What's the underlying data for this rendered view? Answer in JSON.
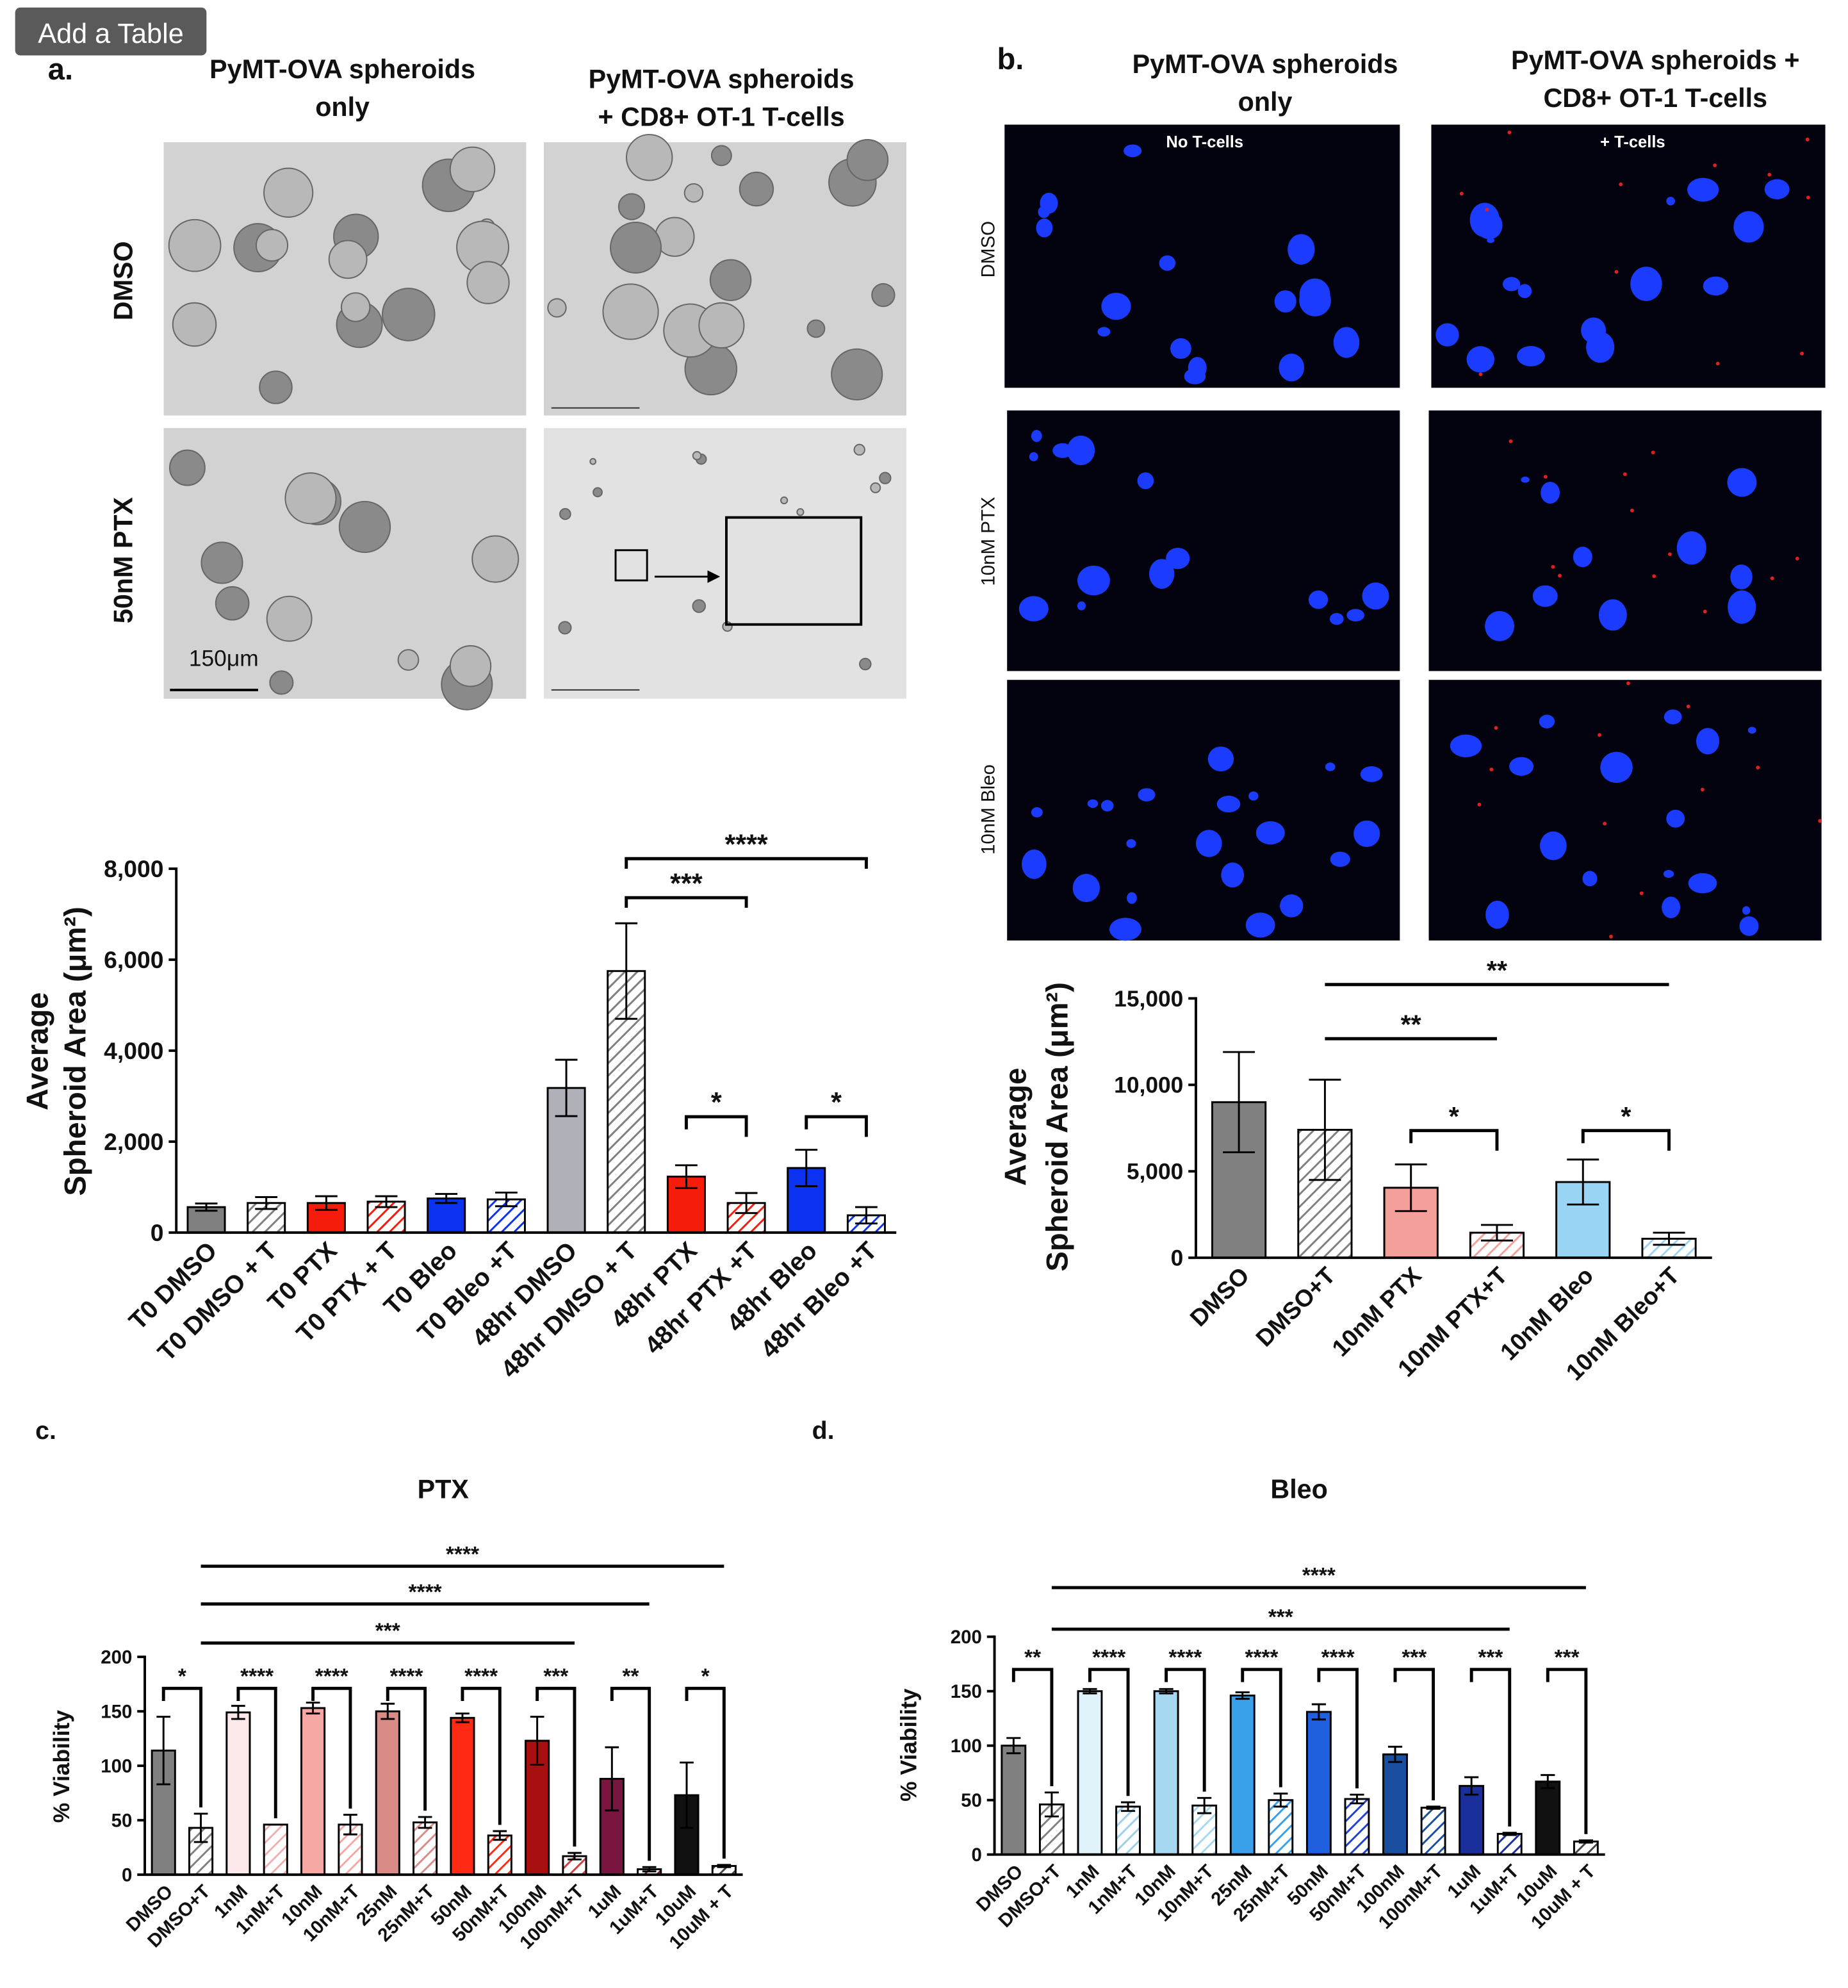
{
  "button": "Add a Table",
  "panel_a": {
    "label": "a.",
    "col_headers": [
      [
        "PyMT-OVA spheroids",
        "only"
      ],
      [
        "PyMT-OVA spheroids",
        "+ CD8+ OT-1 T-cells"
      ]
    ],
    "row_labels": [
      "DMSO",
      "50nM PTX"
    ],
    "scale_bar": "150μm"
  },
  "panel_b": {
    "label": "b.",
    "col_headers": [
      [
        "PyMT-OVA spheroids",
        "only"
      ],
      [
        "PyMT-OVA spheroids +",
        "CD8+ OT-1 T-cells"
      ]
    ],
    "image_labels": [
      "No T-cells",
      "+ T-cells"
    ],
    "row_labels": [
      "DMSO",
      "10nM PTX",
      "10nM Bleo"
    ]
  },
  "panel_c": {
    "label": "c."
  },
  "panel_d": {
    "label": "d."
  },
  "chart_data": [
    {
      "type": "bar",
      "y_label": [
        "Average",
        "Spheroid Area (μm²)"
      ],
      "categories": [
        "T0 DMSO",
        "T0 DMSO + T",
        "T0 PTX",
        "T0 PTX + T",
        "T0 Bleo",
        "T0 Bleo +T",
        "48hr DMSO",
        "48hr DMSO + T",
        "48hr PTX",
        "48hr PTX +T",
        "48hr Bleo",
        "48hr Bleo +T"
      ],
      "values": [
        560,
        650,
        650,
        680,
        750,
        730,
        3180,
        5750,
        1230,
        650,
        1420,
        380
      ],
      "errors": [
        80,
        130,
        150,
        120,
        100,
        150,
        620,
        1050,
        250,
        220,
        400,
        180
      ],
      "colors": [
        "#808080",
        "#808080",
        "#f51c0c",
        "#f51c0c",
        "#0a32f0",
        "#0a32f0",
        "#b0b0b8",
        "#808080",
        "#f51c0c",
        "#f51c0c",
        "#0a32f0",
        "#0a32f0"
      ],
      "hatched": [
        false,
        true,
        false,
        true,
        false,
        true,
        false,
        true,
        false,
        true,
        false,
        true
      ],
      "ylim": [
        0,
        8000
      ],
      "yticks": [
        0,
        {
          "value": 2000,
          "label": "2,000"
        },
        {
          "value": 4000,
          "label": "4,000"
        },
        {
          "value": 6000,
          "label": "6,000"
        },
        {
          "value": 8000,
          "label": "8,000"
        }
      ],
      "grid": false,
      "annotations": [
        {
          "text": "****",
          "between": [
            "48hr DMSO + T",
            "48hr Bleo +T"
          ]
        },
        {
          "text": "***",
          "between": [
            "48hr DMSO + T",
            "48hr PTX +T"
          ]
        },
        {
          "text": "*",
          "between": [
            "48hr PTX",
            "48hr PTX +T"
          ]
        },
        {
          "text": "*",
          "between": [
            "48hr Bleo",
            "48hr Bleo +T"
          ]
        }
      ]
    },
    {
      "type": "bar",
      "y_label": [
        "Average",
        "Spheroid Area (μm²)"
      ],
      "categories": [
        "DMSO",
        "DMSO+T",
        "10nM PTX",
        "10nM PTX+T",
        "10nM Bleo",
        "10nM Bleo+T"
      ],
      "values": [
        9000,
        7400,
        4050,
        1450,
        4380,
        1100
      ],
      "errors": [
        2900,
        2900,
        1350,
        450,
        1300,
        350
      ],
      "colors": [
        "#808080",
        "#808080",
        "#f4a09a",
        "#f4a09a",
        "#99d4f5",
        "#99d4f5"
      ],
      "hatched": [
        false,
        true,
        false,
        true,
        false,
        true
      ],
      "ylim": [
        0,
        15000
      ],
      "yticks": [
        0,
        {
          "value": 5000,
          "label": "5,000"
        },
        {
          "value": 10000,
          "label": "10,000"
        },
        {
          "value": 15000,
          "label": "15,000"
        }
      ],
      "grid": false,
      "annotations": [
        {
          "text": "**",
          "between": [
            "DMSO+T",
            "10nM Bleo+T"
          ]
        },
        {
          "text": "**",
          "between": [
            "DMSO+T",
            "10nM PTX+T"
          ]
        },
        {
          "text": "*",
          "between": [
            "10nM PTX",
            "10nM PTX+T"
          ]
        },
        {
          "text": "*",
          "between": [
            "10nM Bleo",
            "10nM Bleo+T"
          ]
        }
      ]
    },
    {
      "type": "bar",
      "title": "PTX",
      "y_label": [
        "% Viability"
      ],
      "categories": [
        "DMSO",
        "DMSO+T",
        "1nM",
        "1nM+T",
        "10nM",
        "10nM+T",
        "25nM",
        "25nM+T",
        "50nM",
        "50nM+T",
        "100nM",
        "100nM+T",
        "1uM",
        "1uM+T",
        "10uM",
        "10uM + T"
      ],
      "values": [
        114,
        43,
        149,
        46,
        153,
        46,
        150,
        48,
        144,
        36,
        123,
        17,
        88,
        5,
        73,
        8
      ],
      "errors": [
        31,
        13,
        6,
        0,
        5,
        9,
        7,
        5,
        4,
        4,
        22,
        3,
        29,
        2,
        30,
        1
      ],
      "colors": [
        "#808080",
        "#808080",
        "#fde9e9",
        "#f0b0b0",
        "#f4a7a3",
        "#f4a7a3",
        "#d98b88",
        "#d98b88",
        "#ff2a14",
        "#ff2a14",
        "#a61010",
        "#d04040",
        "#7a1540",
        "#7a1540",
        "#111111",
        "#444444"
      ],
      "hatched": [
        false,
        true,
        false,
        true,
        false,
        true,
        false,
        true,
        false,
        true,
        false,
        true,
        false,
        true,
        false,
        true
      ],
      "ylim": [
        0,
        200
      ],
      "yticks": [
        0,
        50,
        100,
        150,
        200
      ],
      "grid": false,
      "annotations": [
        {
          "text": "****",
          "between": [
            "DMSO+T",
            "10uM + T"
          ]
        },
        {
          "text": "****",
          "between": [
            "DMSO+T",
            "1uM+T"
          ]
        },
        {
          "text": "***",
          "between": [
            "DMSO+T",
            "100nM+T"
          ]
        },
        {
          "text": "*",
          "between": [
            "DMSO",
            "DMSO+T"
          ]
        },
        {
          "text": "****",
          "between": [
            "1nM",
            "1nM+T"
          ]
        },
        {
          "text": "****",
          "between": [
            "10nM",
            "10nM+T"
          ]
        },
        {
          "text": "****",
          "between": [
            "25nM",
            "25nM+T"
          ]
        },
        {
          "text": "****",
          "between": [
            "50nM",
            "50nM+T"
          ]
        },
        {
          "text": "***",
          "between": [
            "100nM",
            "100nM+T"
          ]
        },
        {
          "text": "**",
          "between": [
            "1uM",
            "1uM+T"
          ]
        },
        {
          "text": "*",
          "between": [
            "10uM",
            "10uM + T"
          ]
        }
      ]
    },
    {
      "type": "bar",
      "title": "Bleo",
      "y_label": [
        "% Viability"
      ],
      "categories": [
        "DMSO",
        "DMSO+T",
        "1nM",
        "1nM+T",
        "10nM",
        "10nM+T",
        "25nM",
        "25nM+T",
        "50nM",
        "50nM+T",
        "100nM",
        "100nM+T",
        "1uM",
        "1uM+T",
        "10uM",
        "10uM + T"
      ],
      "values": [
        100,
        46,
        150,
        44,
        150,
        45,
        146,
        50,
        131,
        51,
        92,
        43,
        63,
        19,
        67,
        12
      ],
      "errors": [
        7,
        11,
        2,
        4,
        2,
        7,
        3,
        6,
        7,
        4,
        7,
        1,
        8,
        1,
        6,
        1
      ],
      "colors": [
        "#808080",
        "#808080",
        "#e0f3fb",
        "#9ccfe8",
        "#a6d8f2",
        "#a6d8f2",
        "#3aa0ea",
        "#3aa0ea",
        "#1f5fe0",
        "#1f3fd0",
        "#1a4fa0",
        "#1a4fa0",
        "#1a2f9c",
        "#1a2f9c",
        "#111111",
        "#444444"
      ],
      "hatched": [
        false,
        true,
        false,
        true,
        false,
        true,
        false,
        true,
        false,
        true,
        false,
        true,
        false,
        true,
        false,
        true
      ],
      "ylim": [
        0,
        200
      ],
      "yticks": [
        0,
        50,
        100,
        150,
        200
      ],
      "grid": false,
      "annotations": [
        {
          "text": "****",
          "between": [
            "DMSO+T",
            "10uM + T"
          ]
        },
        {
          "text": "***",
          "between": [
            "DMSO+T",
            "1uM+T"
          ]
        },
        {
          "text": "**",
          "between": [
            "DMSO",
            "DMSO+T"
          ]
        },
        {
          "text": "****",
          "between": [
            "1nM",
            "1nM+T"
          ]
        },
        {
          "text": "****",
          "between": [
            "10nM",
            "10nM+T"
          ]
        },
        {
          "text": "****",
          "between": [
            "25nM",
            "25nM+T"
          ]
        },
        {
          "text": "****",
          "between": [
            "50nM",
            "50nM+T"
          ]
        },
        {
          "text": "***",
          "between": [
            "100nM",
            "100nM+T"
          ]
        },
        {
          "text": "***",
          "between": [
            "1uM",
            "1uM+T"
          ]
        },
        {
          "text": "***",
          "between": [
            "10uM",
            "10uM + T"
          ]
        }
      ]
    }
  ]
}
